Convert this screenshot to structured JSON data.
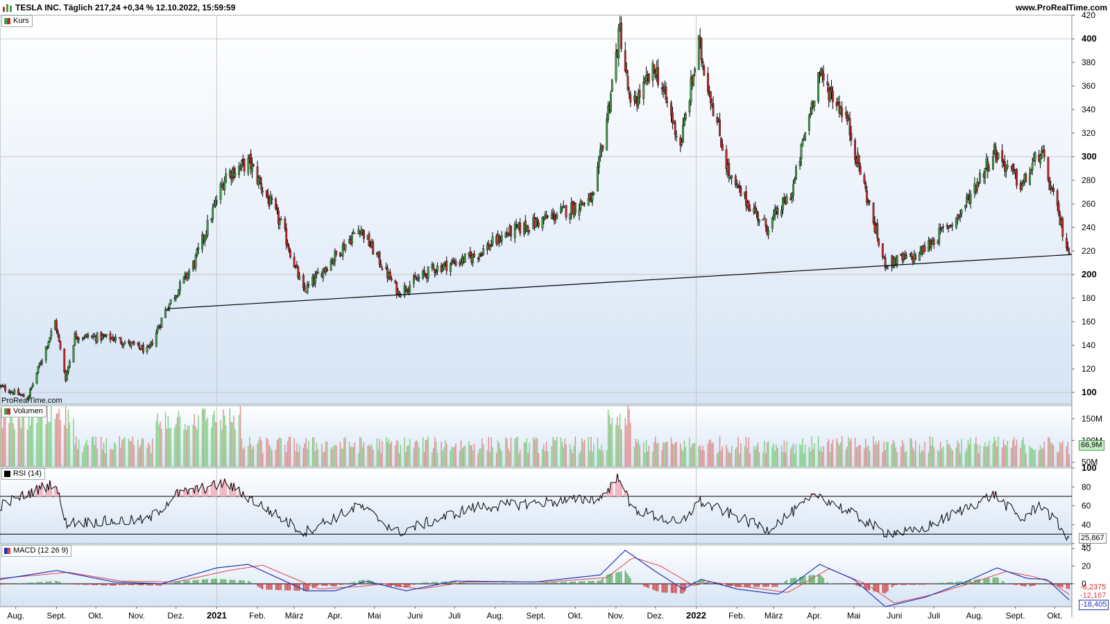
{
  "header": {
    "title": "TESLA INC. Täglich 217,24 +0,34 % 12.10.2022, 15:59:59",
    "site": "www.ProRealTime.com",
    "watermark": "ProRealTime.com"
  },
  "panels": {
    "price_label": "Kurs",
    "volume_label": "Volumen",
    "rsi_label": "RSI (14)",
    "macd_label": "MACD (12 26 9)"
  },
  "colors": {
    "up": "#43a047",
    "down": "#c62828",
    "volume_up": "#7ccf7c",
    "volume_down": "#e08a8a",
    "panel_bg_top": "#ffffff",
    "panel_bg_bottom": "#d6e4f5",
    "macd_line": "#2233bb",
    "signal_line": "#dd4444",
    "rsi_fill": "#f2b8c6"
  },
  "last_values": {
    "volume": "66,9M",
    "rsi": "25,867",
    "macd": "-6,2375",
    "signal": "-12,167",
    "macd_line": "-18,405"
  },
  "chart_data": [
    {
      "type": "candlestick",
      "panel": "Kurs",
      "ylim": [
        90,
        420
      ],
      "y_ticks": [
        100,
        120,
        140,
        160,
        180,
        200,
        220,
        240,
        260,
        280,
        300,
        320,
        340,
        360,
        380,
        400,
        420
      ],
      "y_ticks_bold": [
        100,
        200,
        300,
        400
      ],
      "x_tick_labels": [
        "Aug.",
        "Sept.",
        "Okt.",
        "Nov.",
        "Dez.",
        "2021",
        "Feb.",
        "März",
        "Apr.",
        "Mai",
        "Juni",
        "Juli",
        "Aug.",
        "Sept.",
        "Okt.",
        "Nov.",
        "Dez.",
        "2022",
        "Feb.",
        "März",
        "Apr.",
        "Mai",
        "Juni",
        "Juli",
        "Aug.",
        "Sept.",
        "Okt."
      ],
      "x_tick_bold": [
        "2021",
        "2022"
      ],
      "key_points": [
        {
          "date": "2020-07-20",
          "close": 105
        },
        {
          "date": "2020-08-10",
          "close": 95
        },
        {
          "date": "2020-08-31",
          "close": 160
        },
        {
          "date": "2020-09-08",
          "close": 112
        },
        {
          "date": "2020-09-15",
          "close": 148
        },
        {
          "date": "2020-10-15",
          "close": 146
        },
        {
          "date": "2020-11-10",
          "close": 135
        },
        {
          "date": "2020-11-23",
          "close": 170
        },
        {
          "date": "2020-12-15",
          "close": 210
        },
        {
          "date": "2021-01-08",
          "close": 285
        },
        {
          "date": "2021-01-26",
          "close": 295
        },
        {
          "date": "2021-02-20",
          "close": 240
        },
        {
          "date": "2021-03-08",
          "close": 185
        },
        {
          "date": "2021-04-20",
          "close": 240
        },
        {
          "date": "2021-05-19",
          "close": 185
        },
        {
          "date": "2021-06-15",
          "close": 205
        },
        {
          "date": "2021-07-15",
          "close": 215
        },
        {
          "date": "2021-08-10",
          "close": 235
        },
        {
          "date": "2021-09-15",
          "close": 250
        },
        {
          "date": "2021-10-15",
          "close": 265
        },
        {
          "date": "2021-10-26",
          "close": 340
        },
        {
          "date": "2021-11-04",
          "close": 408
        },
        {
          "date": "2021-11-12",
          "close": 340
        },
        {
          "date": "2021-12-01",
          "close": 375
        },
        {
          "date": "2021-12-20",
          "close": 310
        },
        {
          "date": "2022-01-03",
          "close": 395
        },
        {
          "date": "2022-01-27",
          "close": 280
        },
        {
          "date": "2022-02-24",
          "close": 240
        },
        {
          "date": "2022-03-15",
          "close": 270
        },
        {
          "date": "2022-04-04",
          "close": 370
        },
        {
          "date": "2022-04-25",
          "close": 335
        },
        {
          "date": "2022-05-24",
          "close": 210
        },
        {
          "date": "2022-06-17",
          "close": 215
        },
        {
          "date": "2022-07-20",
          "close": 250
        },
        {
          "date": "2022-08-16",
          "close": 305
        },
        {
          "date": "2022-09-06",
          "close": 275
        },
        {
          "date": "2022-09-20",
          "close": 305
        },
        {
          "date": "2022-10-12",
          "close": 217.24
        }
      ],
      "trendline": [
        {
          "date": "2020-11-24",
          "value": 171
        },
        {
          "date": "2022-10-14",
          "value": 217
        }
      ]
    },
    {
      "type": "bar",
      "panel": "Volumen",
      "y_tick_labels": [
        "150M",
        "100M",
        "50M"
      ],
      "ylim": [
        40,
        180
      ],
      "last": "66,9M"
    },
    {
      "type": "line",
      "panel": "RSI (14)",
      "ylim": [
        20,
        100
      ],
      "y_ticks": [
        20,
        40,
        60,
        80,
        100
      ],
      "levels": [
        70,
        30
      ],
      "key_points": [
        {
          "date": "2020-07-20",
          "value": 60
        },
        {
          "date": "2020-08-31",
          "value": 85
        },
        {
          "date": "2020-09-08",
          "value": 42
        },
        {
          "date": "2020-11-10",
          "value": 45
        },
        {
          "date": "2020-12-01",
          "value": 72
        },
        {
          "date": "2021-01-08",
          "value": 84
        },
        {
          "date": "2021-03-08",
          "value": 32
        },
        {
          "date": "2021-04-20",
          "value": 60
        },
        {
          "date": "2021-05-19",
          "value": 32
        },
        {
          "date": "2021-07-15",
          "value": 58
        },
        {
          "date": "2021-10-20",
          "value": 68
        },
        {
          "date": "2021-11-04",
          "value": 92
        },
        {
          "date": "2021-11-12",
          "value": 58
        },
        {
          "date": "2021-12-20",
          "value": 40
        },
        {
          "date": "2022-01-03",
          "value": 65
        },
        {
          "date": "2022-02-24",
          "value": 35
        },
        {
          "date": "2022-04-04",
          "value": 72
        },
        {
          "date": "2022-05-24",
          "value": 32
        },
        {
          "date": "2022-06-17",
          "value": 32
        },
        {
          "date": "2022-08-16",
          "value": 72
        },
        {
          "date": "2022-09-06",
          "value": 45
        },
        {
          "date": "2022-09-20",
          "value": 62
        },
        {
          "date": "2022-10-12",
          "value": 25.867
        }
      ]
    },
    {
      "type": "line",
      "panel": "MACD (12 26 9)",
      "ylim": [
        -26,
        44
      ],
      "y_ticks": [
        40,
        20,
        0
      ],
      "series": [
        {
          "name": "MACD",
          "key_points": [
            {
              "date": "2020-07-20",
              "value": 5
            },
            {
              "date": "2020-09-01",
              "value": 15
            },
            {
              "date": "2020-10-15",
              "value": 2
            },
            {
              "date": "2020-11-20",
              "value": 0
            },
            {
              "date": "2021-01-01",
              "value": 18
            },
            {
              "date": "2021-01-25",
              "value": 22
            },
            {
              "date": "2021-03-10",
              "value": -8
            },
            {
              "date": "2021-04-01",
              "value": -8
            },
            {
              "date": "2021-04-25",
              "value": 3
            },
            {
              "date": "2021-05-25",
              "value": -8
            },
            {
              "date": "2021-07-01",
              "value": 3
            },
            {
              "date": "2021-09-01",
              "value": 2
            },
            {
              "date": "2021-10-20",
              "value": 10
            },
            {
              "date": "2021-11-08",
              "value": 38
            },
            {
              "date": "2021-12-01",
              "value": 14
            },
            {
              "date": "2021-12-22",
              "value": -6
            },
            {
              "date": "2022-01-05",
              "value": 5
            },
            {
              "date": "2022-02-01",
              "value": -6
            },
            {
              "date": "2022-03-05",
              "value": -12
            },
            {
              "date": "2022-04-05",
              "value": 22
            },
            {
              "date": "2022-05-01",
              "value": 5
            },
            {
              "date": "2022-05-25",
              "value": -26
            },
            {
              "date": "2022-06-25",
              "value": -15
            },
            {
              "date": "2022-07-25",
              "value": 2
            },
            {
              "date": "2022-08-18",
              "value": 18
            },
            {
              "date": "2022-09-10",
              "value": 6
            },
            {
              "date": "2022-09-25",
              "value": 5
            },
            {
              "date": "2022-10-12",
              "value": -18.405
            }
          ]
        },
        {
          "name": "Signal",
          "key_points": [
            {
              "date": "2020-07-20",
              "value": 6
            },
            {
              "date": "2020-09-10",
              "value": 13
            },
            {
              "date": "2020-10-20",
              "value": 3
            },
            {
              "date": "2020-12-01",
              "value": 2
            },
            {
              "date": "2021-01-10",
              "value": 15
            },
            {
              "date": "2021-02-05",
              "value": 21
            },
            {
              "date": "2021-03-20",
              "value": -6
            },
            {
              "date": "2021-04-20",
              "value": -3
            },
            {
              "date": "2021-05-10",
              "value": 0
            },
            {
              "date": "2021-06-05",
              "value": -6
            },
            {
              "date": "2021-07-10",
              "value": 2
            },
            {
              "date": "2021-09-10",
              "value": 2
            },
            {
              "date": "2021-10-25",
              "value": 7
            },
            {
              "date": "2021-11-14",
              "value": 30
            },
            {
              "date": "2021-12-05",
              "value": 20
            },
            {
              "date": "2021-12-30",
              "value": -2
            },
            {
              "date": "2022-01-12",
              "value": 2
            },
            {
              "date": "2022-02-10",
              "value": -4
            },
            {
              "date": "2022-03-12",
              "value": -10
            },
            {
              "date": "2022-04-12",
              "value": 17
            },
            {
              "date": "2022-05-10",
              "value": 0
            },
            {
              "date": "2022-06-01",
              "value": -22
            },
            {
              "date": "2022-07-01",
              "value": -12
            },
            {
              "date": "2022-08-01",
              "value": 2
            },
            {
              "date": "2022-08-25",
              "value": 14
            },
            {
              "date": "2022-09-15",
              "value": 8
            },
            {
              "date": "2022-09-28",
              "value": 2
            },
            {
              "date": "2022-10-12",
              "value": -12.167
            }
          ]
        }
      ],
      "histogram_last": -6.2375
    }
  ]
}
